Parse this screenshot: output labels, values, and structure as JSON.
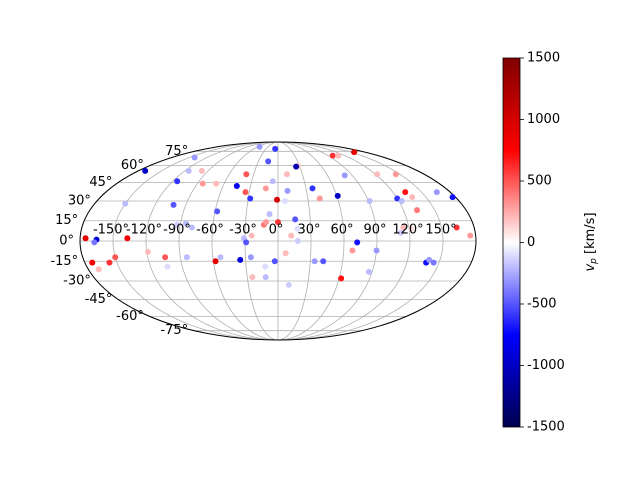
{
  "chart_data": {
    "type": "scatter",
    "projection": "mollweide",
    "grid": true,
    "colormap": "seismic",
    "x": [
      -175,
      -165,
      -167,
      -173,
      -170,
      -157,
      -150,
      -137,
      -150,
      -171,
      -102,
      -115,
      -115,
      -141,
      -79,
      -85,
      -93,
      -104,
      -119,
      -104,
      -84,
      -98,
      -84,
      -69,
      -58,
      -58,
      -53,
      -45,
      -39,
      -34,
      -28,
      -35,
      -25,
      -31,
      -29,
      -24,
      -13,
      -11,
      -55,
      -7,
      -15,
      -13,
      -6,
      -1,
      0,
      -8,
      7,
      10,
      11,
      28,
      25,
      16,
      12,
      18,
      7,
      11,
      -12,
      -25,
      -12,
      -3,
      37,
      42,
      34,
      42,
      98,
      108,
      157,
      61,
      81,
      68,
      72,
      62,
      90,
      87,
      91,
      122,
      145,
      133,
      120,
      123,
      136,
      133,
      166,
      177,
      164,
      175,
      138,
      140,
      145,
      115,
      112,
      122,
      18
    ],
    "y": [
      2,
      1,
      -1,
      -16,
      -21,
      -16,
      -12,
      2,
      28,
      55,
      27,
      46,
      55,
      68,
      10,
      13,
      12,
      -12,
      -8,
      -19,
      -12,
      55,
      44,
      44,
      22,
      -15,
      -12,
      42,
      52,
      37,
      32,
      -14,
      -12,
      2,
      -1,
      4,
      12,
      14,
      81,
      78,
      64,
      40,
      46,
      31,
      14,
      20,
      30,
      38,
      52,
      60,
      59,
      16,
      4,
      0,
      -9,
      -33,
      -27,
      -27,
      -19,
      -15,
      40,
      32,
      -15,
      -15,
      70,
      70,
      74,
      34,
      51,
      -7,
      -1,
      -28,
      -7,
      -23,
      30,
      52,
      52,
      37,
      32,
      30,
      33,
      23,
      37,
      33,
      10,
      4,
      -16,
      -14,
      -16,
      10,
      6,
      9,
      9
    ],
    "values": [
      900,
      -900,
      -400,
      800,
      200,
      600,
      500,
      800,
      -200,
      -1000,
      -500,
      -600,
      -200,
      -300,
      -200,
      -200,
      -150,
      500,
      200,
      -100,
      -200,
      200,
      300,
      200,
      -500,
      900,
      -200,
      -800,
      500,
      500,
      -600,
      -900,
      -300,
      -200,
      -500,
      200,
      400,
      300,
      -300,
      -600,
      -500,
      300,
      -200,
      1000,
      600,
      -200,
      -100,
      -300,
      200,
      150,
      -1100,
      -500,
      200,
      -150,
      200,
      -150,
      -200,
      200,
      -100,
      -500,
      -600,
      300,
      -300,
      -500,
      600,
      200,
      900,
      -1000,
      -300,
      300,
      -700,
      700,
      -300,
      -200,
      -200,
      200,
      300,
      700,
      -600,
      -200,
      200,
      400,
      -300,
      -700,
      600,
      300,
      -700,
      -300,
      -400,
      200,
      -150,
      100,
      -100
    ],
    "xlim": [
      -180,
      180
    ],
    "ylim": [
      -90,
      90
    ],
    "xticks": [
      {
        "value": -150,
        "label": "-150°"
      },
      {
        "value": -120,
        "label": "-120°"
      },
      {
        "value": -90,
        "label": "-90°"
      },
      {
        "value": -60,
        "label": "-60°"
      },
      {
        "value": -30,
        "label": "-30°"
      },
      {
        "value": 0,
        "label": "0°"
      },
      {
        "value": 30,
        "label": "30°"
      },
      {
        "value": 60,
        "label": "60°"
      },
      {
        "value": 90,
        "label": "90°"
      },
      {
        "value": 120,
        "label": "120°"
      },
      {
        "value": 150,
        "label": "150°"
      }
    ],
    "yticks": [
      {
        "value": -75,
        "label": "-75°"
      },
      {
        "value": -60,
        "label": "-60°"
      },
      {
        "value": -45,
        "label": "-45°"
      },
      {
        "value": -30,
        "label": "-30°"
      },
      {
        "value": -15,
        "label": "-15°"
      },
      {
        "value": 0,
        "label": "0°"
      },
      {
        "value": 15,
        "label": "15°"
      },
      {
        "value": 30,
        "label": "30°"
      },
      {
        "value": 45,
        "label": "45°"
      },
      {
        "value": 60,
        "label": "60°"
      },
      {
        "value": 75,
        "label": "75°"
      }
    ],
    "clim": [
      -1500,
      1500
    ],
    "cticks": [
      -1500,
      -1000,
      -500,
      0,
      500,
      1000,
      1500
    ],
    "colorbar_label": "v_p [km/s]"
  }
}
